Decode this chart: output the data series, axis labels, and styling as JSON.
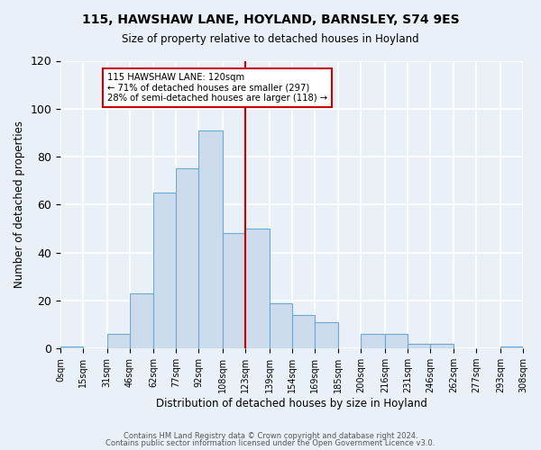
{
  "title": "115, HAWSHAW LANE, HOYLAND, BARNSLEY, S74 9ES",
  "subtitle": "Size of property relative to detached houses in Hoyland",
  "xlabel": "Distribution of detached houses by size in Hoyland",
  "ylabel": "Number of detached properties",
  "bar_color": "#ccdcec",
  "bar_edge_color": "#6aaad4",
  "bg_color": "#eaf0f8",
  "grid_color": "#ffffff",
  "bin_edges": [
    0,
    15,
    31,
    46,
    62,
    77,
    92,
    108,
    123,
    139,
    154,
    169,
    185,
    200,
    216,
    231,
    246,
    262,
    277,
    293,
    308
  ],
  "bin_labels": [
    "0sqm",
    "15sqm",
    "31sqm",
    "46sqm",
    "62sqm",
    "77sqm",
    "92sqm",
    "108sqm",
    "123sqm",
    "139sqm",
    "154sqm",
    "169sqm",
    "185sqm",
    "200sqm",
    "216sqm",
    "231sqm",
    "246sqm",
    "262sqm",
    "277sqm",
    "293sqm",
    "308sqm"
  ],
  "counts": [
    1,
    0,
    6,
    23,
    65,
    75,
    91,
    48,
    50,
    19,
    14,
    11,
    0,
    6,
    6,
    2,
    2,
    0,
    0,
    1
  ],
  "vline_x": 123,
  "vline_color": "#cc0000",
  "annotation_title": "115 HAWSHAW LANE: 120sqm",
  "annotation_line1": "← 71% of detached houses are smaller (297)",
  "annotation_line2": "28% of semi-detached houses are larger (118) →",
  "annotation_box_color": "#ffffff",
  "annotation_box_edge": "#cc0000",
  "ylim": [
    0,
    120
  ],
  "yticks": [
    0,
    20,
    40,
    60,
    80,
    100,
    120
  ],
  "footer1": "Contains HM Land Registry data © Crown copyright and database right 2024.",
  "footer2": "Contains public sector information licensed under the Open Government Licence v3.0."
}
